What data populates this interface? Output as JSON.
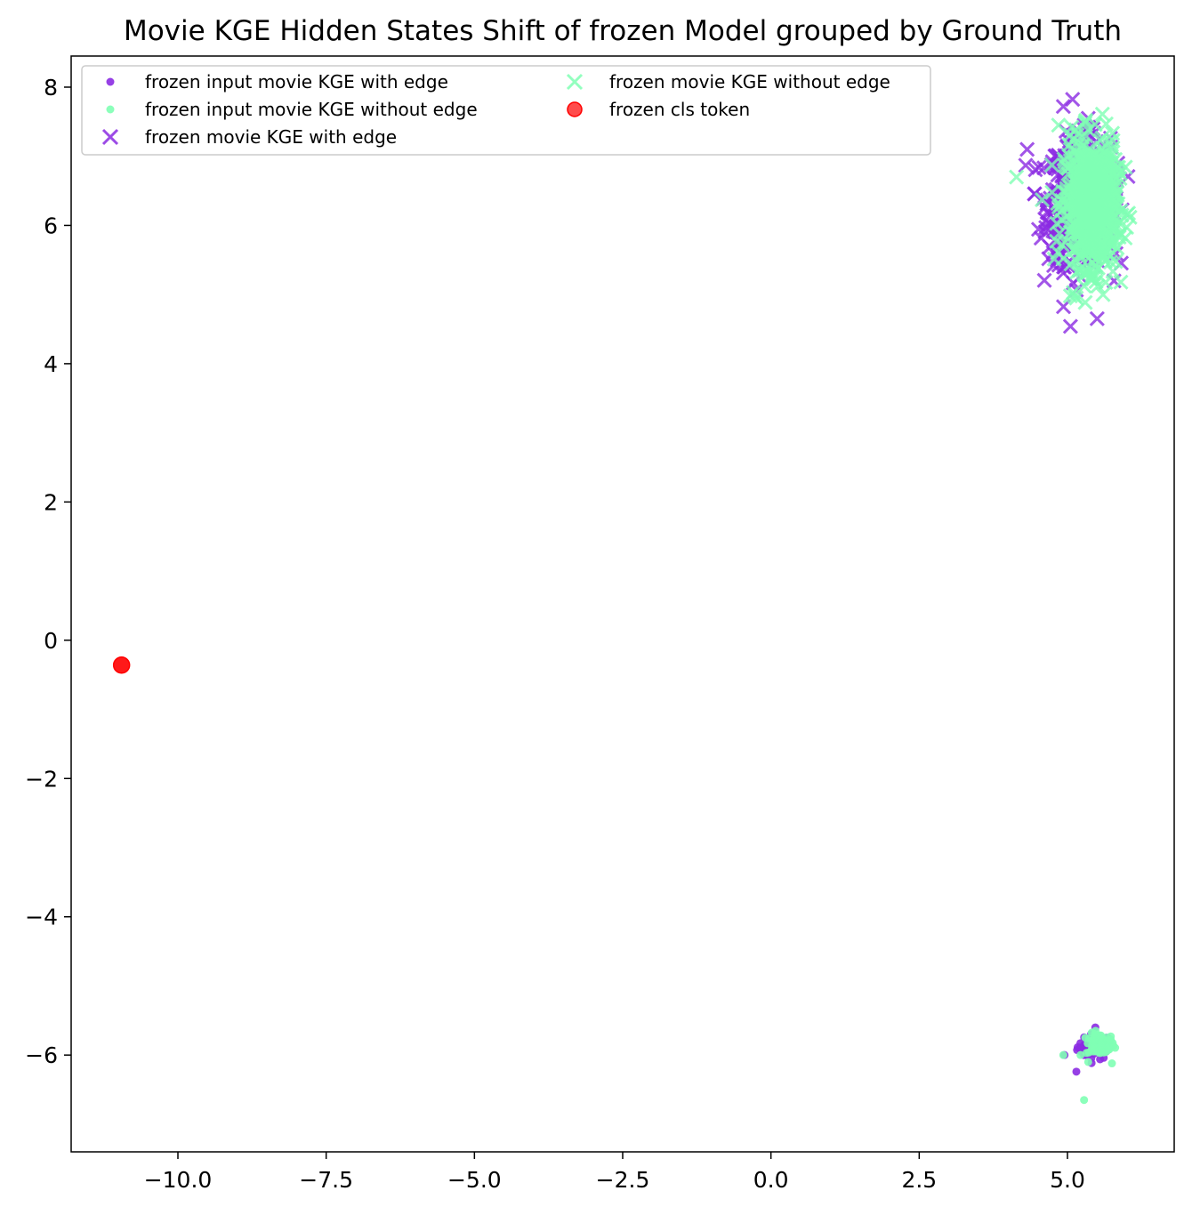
{
  "chart_data": {
    "type": "scatter",
    "title": "Movie KGE Hidden States Shift of frozen Model grouped by Ground Truth",
    "xlabel": "",
    "ylabel": "",
    "xlim": [
      -11.8,
      6.8
    ],
    "ylim": [
      -7.4,
      8.45
    ],
    "xticks": [
      -10.0,
      -7.5,
      -5.0,
      -2.5,
      0.0,
      2.5,
      5.0
    ],
    "xtick_labels": [
      "−10.0",
      "−7.5",
      "−5.0",
      "−2.5",
      "0.0",
      "2.5",
      "5.0"
    ],
    "yticks": [
      -6,
      -4,
      -2,
      0,
      2,
      4,
      6,
      8
    ],
    "ytick_labels": [
      "−6",
      "−4",
      "−2",
      "0",
      "2",
      "4",
      "6",
      "8"
    ],
    "grid": false,
    "legend_placement": "upper-left",
    "legend_columns": 2,
    "series": [
      {
        "name": "frozen input movie KGE with edge",
        "marker": "dot",
        "color": "#8b2be2",
        "cluster": {
          "cx": 5.45,
          "cy": -5.88,
          "sx": 0.14,
          "sy": 0.09,
          "n": 50
        },
        "points": [
          [
            5.15,
            -6.24
          ],
          [
            4.95,
            -6.0
          ],
          [
            5.47,
            -5.6
          ],
          [
            5.33,
            -5.85
          ]
        ]
      },
      {
        "name": "frozen input movie KGE without edge",
        "marker": "dot",
        "color": "#80ffb4",
        "cluster": {
          "cx": 5.55,
          "cy": -5.85,
          "sx": 0.12,
          "sy": 0.08,
          "n": 70
        },
        "points": [
          [
            5.28,
            -6.65
          ],
          [
            5.75,
            -6.12
          ],
          [
            5.22,
            -6.0
          ],
          [
            4.93,
            -6.0
          ],
          [
            5.72,
            -5.78
          ],
          [
            5.35,
            -6.1
          ]
        ]
      },
      {
        "name": "frozen movie KGE with edge",
        "marker": "x",
        "color": "#8b2be2",
        "cluster": {
          "cx": 5.2,
          "cy": 6.35,
          "sx": 0.26,
          "sy": 0.45,
          "n": 650
        },
        "points": [
          [
            4.93,
            7.72
          ],
          [
            4.32,
            7.1
          ],
          [
            5.5,
            4.65
          ],
          [
            5.35,
            7.55
          ],
          [
            5.85,
            6.9
          ]
        ]
      },
      {
        "name": "frozen movie KGE without edge",
        "marker": "x",
        "color": "#80ffb4",
        "cluster": {
          "cx": 5.4,
          "cy": 6.3,
          "sx": 0.22,
          "sy": 0.45,
          "n": 750
        },
        "points": [
          [
            4.14,
            6.7
          ],
          [
            5.05,
            4.98
          ],
          [
            5.15,
            4.95
          ],
          [
            5.9,
            5.18
          ],
          [
            5.6,
            5.0
          ],
          [
            5.3,
            7.5
          ],
          [
            4.85,
            7.45
          ]
        ]
      },
      {
        "name": "frozen cls token",
        "marker": "large-dot",
        "color": "#ff0000",
        "cluster": null,
        "points": [
          [
            -10.95,
            -0.36
          ]
        ]
      }
    ]
  }
}
